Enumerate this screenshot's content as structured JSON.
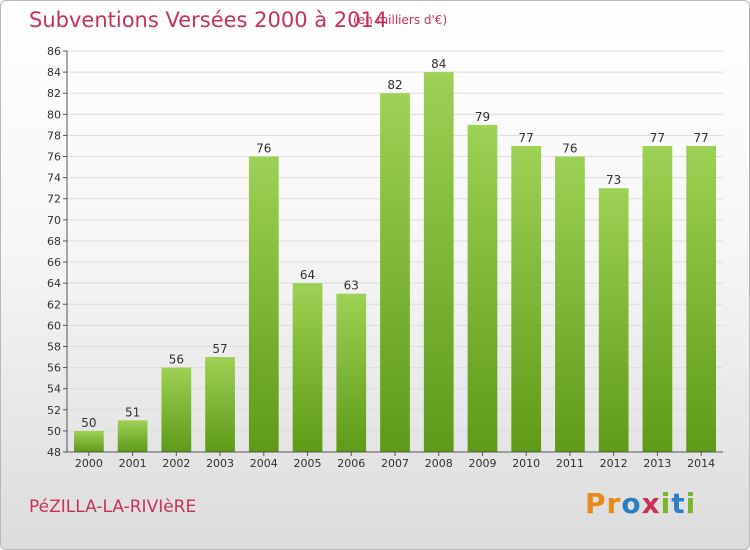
{
  "header": {
    "title": "Subventions Versées 2000 à 2014",
    "subtitle": "(en milliers d'€)"
  },
  "footer": {
    "commune": "PéZILLA-LA-RIVIèRE",
    "logo_letters": [
      "P",
      "r",
      "o",
      "x",
      "i",
      "t",
      "i"
    ],
    "logo_colors": [
      "#e8891c",
      "#e8891c",
      "#2a7fc4",
      "#c8325a",
      "#7bb62a",
      "#2a7fc4",
      "#7bb62a"
    ]
  },
  "chart_data": {
    "type": "bar",
    "title": "Subventions Versées 2000 à 2014",
    "subtitle": "(en milliers d'€)",
    "categories": [
      "2000",
      "2001",
      "2002",
      "2003",
      "2004",
      "2005",
      "2006",
      "2007",
      "2008",
      "2009",
      "2010",
      "2011",
      "2012",
      "2013",
      "2014"
    ],
    "values": [
      50,
      51,
      56,
      57,
      76,
      64,
      63,
      82,
      84,
      79,
      77,
      76,
      73,
      77,
      77
    ],
    "ylim": [
      48,
      86
    ],
    "yticks": [
      48,
      50,
      52,
      54,
      56,
      58,
      60,
      62,
      64,
      66,
      68,
      70,
      72,
      74,
      76,
      78,
      80,
      82,
      84,
      86
    ],
    "grid": true,
    "bar_color_top": "#9ed155",
    "bar_color_bottom": "#5e9a18"
  }
}
